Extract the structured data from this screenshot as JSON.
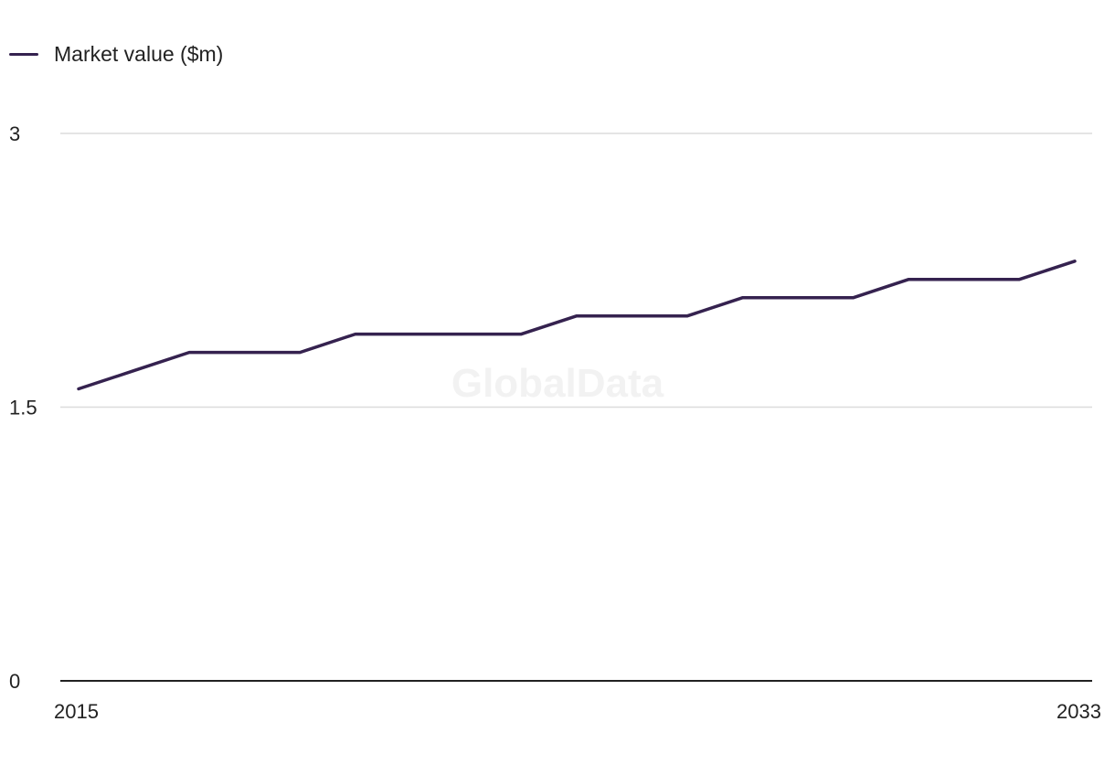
{
  "chart_data": {
    "type": "line",
    "title": "",
    "xlabel": "",
    "ylabel": "",
    "x": [
      2015,
      2016,
      2017,
      2018,
      2019,
      2020,
      2021,
      2022,
      2023,
      2024,
      2025,
      2026,
      2027,
      2028,
      2029,
      2030,
      2031,
      2032,
      2033
    ],
    "series": [
      {
        "name": "Market value ($m)",
        "color": "#35224f",
        "values": [
          1.6,
          1.7,
          1.8,
          1.8,
          1.8,
          1.9,
          1.9,
          1.9,
          1.9,
          2.0,
          2.0,
          2.0,
          2.1,
          2.1,
          2.1,
          2.2,
          2.2,
          2.2,
          2.3
        ]
      }
    ],
    "ylim": [
      0,
      3
    ],
    "yticks": [
      "0",
      "1.5",
      "3"
    ],
    "xticks": [
      "2015",
      "2033"
    ],
    "grid": true,
    "legend_position": "top-left"
  },
  "watermark": "GlobalData",
  "colors": {
    "gridline": "#dcdcdc",
    "axis": "#222222"
  }
}
